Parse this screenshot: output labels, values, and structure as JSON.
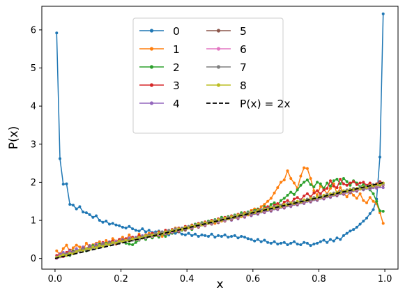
{
  "chart_data": {
    "type": "line",
    "title": "",
    "xlabel": "x",
    "ylabel": "P(x)",
    "xlim": [
      -0.04,
      1.04
    ],
    "ylim": [
      -0.28,
      6.62
    ],
    "x_ticks": [
      0.0,
      0.2,
      0.4,
      0.6,
      0.8,
      1.0
    ],
    "x_tick_labels": [
      "0.0",
      "0.2",
      "0.4",
      "0.6",
      "0.8",
      "1.0"
    ],
    "y_ticks": [
      0,
      1,
      2,
      3,
      4,
      5,
      6
    ],
    "y_tick_labels": [
      "0",
      "1",
      "2",
      "3",
      "4",
      "5",
      "6"
    ],
    "grid": false,
    "legend_position": "top-center",
    "legend_columns": 2,
    "colors": {
      "0": "#1f77b4",
      "1": "#ff7f0e",
      "2": "#2ca02c",
      "3": "#d62728",
      "4": "#9467bd",
      "5": "#8c564b",
      "6": "#e377c2",
      "7": "#7f7f7f",
      "8": "#bcbd22",
      "reference": "#000000"
    },
    "x": [
      0.005,
      0.015,
      0.025,
      0.035,
      0.045,
      0.055,
      0.065,
      0.075,
      0.085,
      0.095,
      0.105,
      0.115,
      0.125,
      0.135,
      0.145,
      0.155,
      0.165,
      0.175,
      0.185,
      0.195,
      0.205,
      0.215,
      0.225,
      0.235,
      0.245,
      0.255,
      0.265,
      0.275,
      0.285,
      0.295,
      0.305,
      0.315,
      0.325,
      0.335,
      0.345,
      0.355,
      0.365,
      0.375,
      0.385,
      0.395,
      0.405,
      0.415,
      0.425,
      0.435,
      0.445,
      0.455,
      0.465,
      0.475,
      0.485,
      0.495,
      0.505,
      0.515,
      0.525,
      0.535,
      0.545,
      0.555,
      0.565,
      0.575,
      0.585,
      0.595,
      0.605,
      0.615,
      0.625,
      0.635,
      0.645,
      0.655,
      0.665,
      0.675,
      0.685,
      0.695,
      0.705,
      0.715,
      0.725,
      0.735,
      0.745,
      0.755,
      0.765,
      0.775,
      0.785,
      0.795,
      0.805,
      0.815,
      0.825,
      0.835,
      0.845,
      0.855,
      0.865,
      0.875,
      0.885,
      0.895,
      0.905,
      0.915,
      0.925,
      0.935,
      0.945,
      0.955,
      0.965,
      0.975,
      0.985,
      0.995
    ],
    "series": [
      {
        "name": "0",
        "values": [
          5.92,
          2.62,
          1.95,
          1.96,
          1.42,
          1.4,
          1.3,
          1.36,
          1.22,
          1.2,
          1.15,
          1.08,
          1.12,
          1.0,
          0.95,
          0.98,
          0.9,
          0.92,
          0.88,
          0.86,
          0.82,
          0.8,
          0.84,
          0.78,
          0.74,
          0.72,
          0.78,
          0.7,
          0.74,
          0.68,
          0.7,
          0.72,
          0.66,
          0.7,
          0.62,
          0.68,
          0.66,
          0.7,
          0.64,
          0.62,
          0.66,
          0.6,
          0.64,
          0.58,
          0.62,
          0.6,
          0.58,
          0.64,
          0.56,
          0.6,
          0.58,
          0.62,
          0.56,
          0.58,
          0.6,
          0.54,
          0.58,
          0.56,
          0.52,
          0.5,
          0.46,
          0.5,
          0.44,
          0.48,
          0.42,
          0.4,
          0.44,
          0.38,
          0.4,
          0.42,
          0.36,
          0.4,
          0.44,
          0.38,
          0.36,
          0.42,
          0.4,
          0.34,
          0.38,
          0.4,
          0.44,
          0.48,
          0.42,
          0.5,
          0.46,
          0.54,
          0.5,
          0.6,
          0.66,
          0.72,
          0.76,
          0.82,
          0.9,
          0.98,
          1.06,
          1.18,
          1.28,
          1.56,
          2.66,
          6.42
        ]
      },
      {
        "name": "1",
        "values": [
          0.2,
          0.1,
          0.26,
          0.35,
          0.18,
          0.28,
          0.35,
          0.3,
          0.22,
          0.4,
          0.3,
          0.36,
          0.4,
          0.44,
          0.33,
          0.47,
          0.38,
          0.52,
          0.46,
          0.5,
          0.56,
          0.48,
          0.62,
          0.5,
          0.52,
          0.64,
          0.54,
          0.58,
          0.66,
          0.62,
          0.6,
          0.7,
          0.58,
          0.74,
          0.66,
          0.7,
          0.8,
          0.72,
          0.76,
          0.84,
          0.8,
          0.78,
          0.9,
          0.82,
          0.94,
          0.88,
          0.96,
          1.0,
          0.92,
          1.04,
          0.98,
          1.06,
          1.1,
          1.02,
          1.08,
          1.16,
          1.1,
          1.2,
          1.14,
          1.26,
          1.3,
          1.22,
          1.36,
          1.42,
          1.5,
          1.58,
          1.72,
          1.86,
          2.0,
          2.06,
          2.3,
          2.1,
          1.98,
          1.84,
          2.16,
          2.38,
          2.36,
          2.1,
          1.78,
          1.66,
          1.9,
          1.82,
          1.7,
          1.84,
          1.96,
          1.7,
          1.86,
          1.72,
          1.62,
          1.76,
          1.66,
          1.58,
          1.7,
          1.52,
          1.46,
          1.6,
          1.5,
          1.44,
          1.2,
          0.92
        ]
      },
      {
        "name": "2",
        "values": [
          0.02,
          0.06,
          0.1,
          0.14,
          0.08,
          0.2,
          0.16,
          0.22,
          0.26,
          0.2,
          0.3,
          0.34,
          0.28,
          0.38,
          0.34,
          0.4,
          0.36,
          0.44,
          0.4,
          0.48,
          0.44,
          0.4,
          0.38,
          0.36,
          0.42,
          0.48,
          0.54,
          0.5,
          0.58,
          0.54,
          0.6,
          0.56,
          0.64,
          0.58,
          0.7,
          0.66,
          0.72,
          0.78,
          0.74,
          0.8,
          0.84,
          0.76,
          0.9,
          0.86,
          0.94,
          0.9,
          0.98,
          0.94,
          1.02,
          0.98,
          1.08,
          1.04,
          1.1,
          1.06,
          1.14,
          1.1,
          1.2,
          1.16,
          1.22,
          1.18,
          1.26,
          1.3,
          1.24,
          1.36,
          1.32,
          1.42,
          1.46,
          1.4,
          1.52,
          1.58,
          1.66,
          1.74,
          1.68,
          1.8,
          1.92,
          2.0,
          2.06,
          1.94,
          1.88,
          2.0,
          1.96,
          1.84,
          1.98,
          1.9,
          2.04,
          2.08,
          1.96,
          2.1,
          2.02,
          1.92,
          2.04,
          1.98,
          1.88,
          1.94,
          1.86,
          1.8,
          1.7,
          1.5,
          1.25,
          1.24
        ]
      },
      {
        "name": "3",
        "values": [
          0.08,
          0.12,
          0.05,
          0.16,
          0.22,
          0.14,
          0.24,
          0.2,
          0.3,
          0.26,
          0.34,
          0.28,
          0.38,
          0.32,
          0.42,
          0.36,
          0.4,
          0.46,
          0.38,
          0.5,
          0.44,
          0.52,
          0.48,
          0.56,
          0.5,
          0.6,
          0.54,
          0.62,
          0.58,
          0.66,
          0.62,
          0.68,
          0.64,
          0.74,
          0.68,
          0.76,
          0.72,
          0.8,
          0.76,
          0.84,
          0.8,
          0.88,
          0.84,
          0.92,
          0.88,
          0.96,
          0.92,
          1.0,
          0.96,
          1.04,
          1.0,
          1.08,
          1.04,
          1.12,
          1.08,
          1.16,
          1.12,
          1.2,
          1.16,
          1.24,
          1.2,
          1.28,
          1.24,
          1.32,
          1.36,
          1.3,
          1.4,
          1.44,
          1.38,
          1.48,
          1.52,
          1.46,
          1.56,
          1.6,
          1.54,
          1.64,
          1.7,
          1.62,
          1.72,
          1.78,
          1.7,
          1.8,
          1.84,
          2.04,
          1.9,
          1.86,
          2.08,
          1.96,
          1.92,
          1.98,
          2.02,
          1.94,
          1.98,
          2.0,
          1.92,
          1.98,
          1.9,
          1.96,
          2.02,
          1.98
        ]
      },
      {
        "name": "4",
        "values": [
          0.04,
          0.1,
          0.16,
          0.08,
          0.2,
          0.14,
          0.26,
          0.2,
          0.3,
          0.24,
          0.34,
          0.3,
          0.38,
          0.32,
          0.4,
          0.36,
          0.44,
          0.4,
          0.46,
          0.42,
          0.5,
          0.46,
          0.54,
          0.5,
          0.56,
          0.52,
          0.6,
          0.56,
          0.62,
          0.6,
          0.66,
          0.62,
          0.7,
          0.66,
          0.72,
          0.7,
          0.76,
          0.72,
          0.8,
          0.76,
          0.82,
          0.8,
          0.86,
          0.82,
          0.9,
          0.86,
          0.94,
          0.9,
          0.98,
          0.94,
          1.0,
          0.98,
          1.04,
          1.0,
          1.08,
          1.04,
          1.12,
          1.08,
          1.16,
          1.12,
          1.18,
          1.16,
          1.22,
          1.2,
          1.26,
          1.24,
          1.3,
          1.28,
          1.34,
          1.32,
          1.38,
          1.36,
          1.42,
          1.4,
          1.46,
          1.44,
          1.5,
          1.48,
          1.54,
          1.52,
          1.58,
          1.56,
          1.62,
          1.6,
          1.66,
          1.64,
          1.7,
          1.68,
          1.74,
          1.72,
          1.78,
          1.76,
          1.82,
          1.8,
          1.84,
          1.82,
          1.86,
          1.84,
          1.88,
          1.86
        ]
      },
      {
        "name": "5",
        "values": [
          0.02,
          0.06,
          0.1,
          0.08,
          0.14,
          0.18,
          0.16,
          0.22,
          0.26,
          0.24,
          0.3,
          0.28,
          0.34,
          0.32,
          0.38,
          0.36,
          0.42,
          0.4,
          0.44,
          0.42,
          0.48,
          0.46,
          0.5,
          0.48,
          0.54,
          0.52,
          0.56,
          0.54,
          0.6,
          0.58,
          0.62,
          0.6,
          0.66,
          0.64,
          0.7,
          0.68,
          0.72,
          0.7,
          0.76,
          0.74,
          0.8,
          0.78,
          0.84,
          0.82,
          0.88,
          0.86,
          0.92,
          0.9,
          0.96,
          0.94,
          1.0,
          0.98,
          1.04,
          1.02,
          1.08,
          1.06,
          1.12,
          1.1,
          1.16,
          1.14,
          1.2,
          1.18,
          1.24,
          1.22,
          1.28,
          1.26,
          1.32,
          1.3,
          1.36,
          1.34,
          1.4,
          1.38,
          1.44,
          1.42,
          1.48,
          1.46,
          1.52,
          1.5,
          1.56,
          1.54,
          1.6,
          1.58,
          1.64,
          1.62,
          1.68,
          1.66,
          1.72,
          1.7,
          1.76,
          1.74,
          1.8,
          1.78,
          1.84,
          1.82,
          1.88,
          1.86,
          1.9,
          1.88,
          1.94,
          1.92
        ]
      },
      {
        "name": "6",
        "values": [
          0.0,
          0.04,
          0.06,
          0.1,
          0.12,
          0.16,
          0.2,
          0.18,
          0.24,
          0.22,
          0.28,
          0.26,
          0.32,
          0.3,
          0.36,
          0.34,
          0.4,
          0.38,
          0.44,
          0.42,
          0.46,
          0.44,
          0.5,
          0.48,
          0.52,
          0.5,
          0.56,
          0.54,
          0.6,
          0.58,
          0.64,
          0.62,
          0.68,
          0.66,
          0.72,
          0.7,
          0.76,
          0.74,
          0.8,
          0.78,
          0.82,
          0.8,
          0.86,
          0.84,
          0.9,
          0.88,
          0.94,
          0.92,
          0.98,
          0.96,
          1.02,
          1.0,
          1.06,
          1.04,
          1.1,
          1.08,
          1.14,
          1.12,
          1.18,
          1.16,
          1.22,
          1.2,
          1.26,
          1.24,
          1.3,
          1.28,
          1.34,
          1.32,
          1.38,
          1.36,
          1.42,
          1.4,
          1.46,
          1.44,
          1.5,
          1.48,
          1.54,
          1.52,
          1.58,
          1.56,
          1.62,
          1.6,
          1.66,
          1.64,
          1.7,
          1.68,
          1.74,
          1.72,
          1.78,
          1.76,
          1.82,
          1.8,
          1.86,
          1.84,
          1.9,
          1.88,
          1.92,
          1.9,
          1.96,
          1.94
        ]
      },
      {
        "name": "7",
        "values": [
          0.02,
          0.05,
          0.08,
          0.12,
          0.1,
          0.16,
          0.2,
          0.18,
          0.24,
          0.22,
          0.28,
          0.26,
          0.32,
          0.3,
          0.36,
          0.34,
          0.4,
          0.38,
          0.42,
          0.4,
          0.46,
          0.44,
          0.5,
          0.48,
          0.54,
          0.52,
          0.58,
          0.56,
          0.62,
          0.6,
          0.66,
          0.64,
          0.7,
          0.68,
          0.74,
          0.72,
          0.78,
          0.76,
          0.8,
          0.78,
          0.84,
          0.82,
          0.88,
          0.86,
          0.92,
          0.9,
          0.96,
          0.94,
          1.0,
          0.98,
          1.04,
          1.02,
          1.08,
          1.06,
          1.12,
          1.1,
          1.16,
          1.14,
          1.2,
          1.18,
          1.24,
          1.22,
          1.28,
          1.26,
          1.32,
          1.3,
          1.36,
          1.34,
          1.4,
          1.38,
          1.44,
          1.42,
          1.48,
          1.46,
          1.52,
          1.5,
          1.56,
          1.54,
          1.6,
          1.58,
          1.64,
          1.62,
          1.68,
          1.66,
          1.72,
          1.7,
          1.76,
          1.74,
          1.8,
          1.78,
          1.84,
          1.82,
          1.86,
          1.84,
          1.9,
          1.88,
          1.94,
          1.92,
          1.98,
          1.96
        ]
      },
      {
        "name": "8",
        "values": [
          0.03,
          0.06,
          0.1,
          0.08,
          0.14,
          0.12,
          0.18,
          0.22,
          0.2,
          0.26,
          0.24,
          0.3,
          0.28,
          0.34,
          0.32,
          0.38,
          0.36,
          0.42,
          0.4,
          0.46,
          0.44,
          0.48,
          0.46,
          0.52,
          0.5,
          0.56,
          0.54,
          0.6,
          0.58,
          0.62,
          0.6,
          0.66,
          0.64,
          0.7,
          0.68,
          0.74,
          0.72,
          0.78,
          0.76,
          0.82,
          0.8,
          0.86,
          0.84,
          0.9,
          0.88,
          0.94,
          0.92,
          0.98,
          0.96,
          1.02,
          1.0,
          1.06,
          1.04,
          1.1,
          1.08,
          1.14,
          1.12,
          1.18,
          1.16,
          1.22,
          1.2,
          1.26,
          1.24,
          1.3,
          1.28,
          1.34,
          1.32,
          1.38,
          1.36,
          1.42,
          1.4,
          1.46,
          1.44,
          1.5,
          1.48,
          1.54,
          1.52,
          1.58,
          1.56,
          1.62,
          1.6,
          1.66,
          1.64,
          1.7,
          1.68,
          1.74,
          1.72,
          1.78,
          1.76,
          1.82,
          1.8,
          1.84,
          1.82,
          1.88,
          1.86,
          1.92,
          1.9,
          1.94,
          1.92,
          1.98
        ]
      }
    ],
    "reference_line": {
      "name": "P(x) = 2x",
      "x": [
        0,
        1
      ],
      "y": [
        0,
        2
      ],
      "style": "dashed"
    }
  }
}
